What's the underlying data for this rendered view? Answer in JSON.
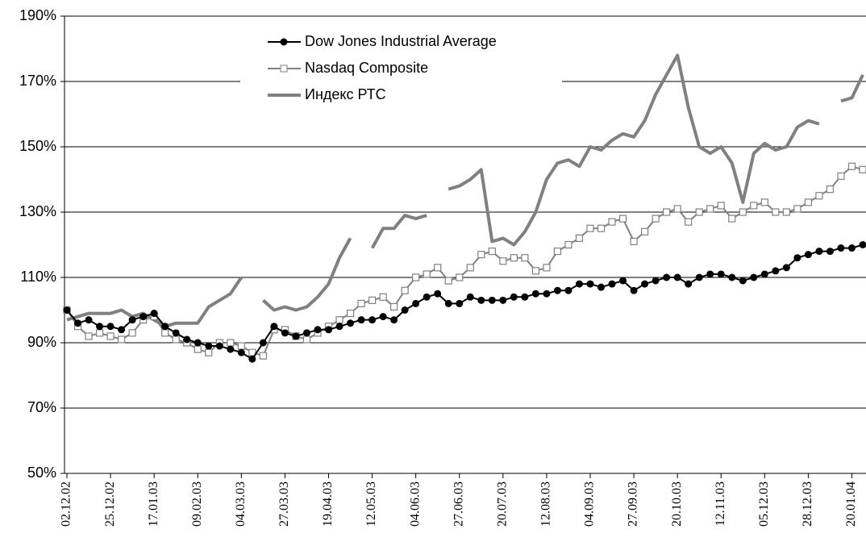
{
  "chart_data": {
    "type": "line",
    "categories": [
      "02.12.02",
      null,
      null,
      null,
      "25.12.02",
      null,
      null,
      null,
      "17.01.03",
      null,
      null,
      null,
      "09.02.03",
      null,
      null,
      null,
      "04.03.03",
      null,
      null,
      null,
      "27.03.03",
      null,
      null,
      null,
      "19.04.03",
      null,
      null,
      null,
      "12.05.03",
      null,
      null,
      null,
      "04.06.03",
      null,
      null,
      null,
      "27.06.03",
      null,
      null,
      null,
      "20.07.03",
      null,
      null,
      null,
      "12.08.03",
      null,
      null,
      null,
      "04.09.03",
      null,
      null,
      null,
      "27.09.03",
      null,
      null,
      null,
      "20.10.03",
      null,
      null,
      null,
      "12.11.03",
      null,
      null,
      null,
      "05.12.03",
      null,
      null,
      null,
      "28.12.03",
      null,
      null,
      null,
      "20.01.04",
      null
    ],
    "series": [
      {
        "name": "Dow Jones Industrial Average",
        "color": "#000000",
        "marker": "circle",
        "values": [
          100,
          96,
          97,
          95,
          95,
          94,
          97,
          98,
          99,
          95,
          93,
          91,
          90,
          89,
          89,
          88,
          87,
          85,
          90,
          95,
          93,
          92,
          93,
          94,
          94,
          95,
          96,
          97,
          97,
          98,
          97,
          100,
          102,
          104,
          105,
          102,
          102,
          104,
          103,
          103,
          103,
          104,
          104,
          105,
          105,
          106,
          106,
          108,
          108,
          107,
          108,
          109,
          106,
          108,
          109,
          110,
          110,
          108,
          110,
          111,
          111,
          110,
          109,
          110,
          111,
          112,
          113,
          116,
          117,
          118,
          118,
          119,
          119,
          120
        ]
      },
      {
        "name": "Nasdaq Composite",
        "color": "#808080",
        "marker": "square",
        "values": [
          100,
          95,
          92,
          93,
          92,
          91,
          93,
          97,
          98,
          93,
          91,
          90,
          88,
          87,
          90,
          90,
          89,
          87,
          86,
          94,
          94,
          92,
          91,
          93,
          95,
          97,
          99,
          102,
          103,
          104,
          101,
          106,
          110,
          111,
          113,
          109,
          110,
          113,
          117,
          118,
          115,
          116,
          116,
          112,
          113,
          118,
          120,
          122,
          125,
          125,
          127,
          128,
          121,
          124,
          128,
          130,
          131,
          127,
          130,
          131,
          132,
          128,
          130,
          132,
          133,
          130,
          130,
          131,
          133,
          135,
          137,
          141,
          144,
          143
        ]
      },
      {
        "name": "Индекс РТС",
        "color": "#808080",
        "marker": "none",
        "values": [
          97,
          98,
          99,
          99,
          99,
          100,
          98,
          99,
          97,
          95,
          96,
          96,
          96,
          101,
          103,
          105,
          110,
          null,
          103,
          100,
          101,
          100,
          101,
          104,
          108,
          116,
          122,
          null,
          119,
          125,
          125,
          129,
          128,
          129,
          null,
          137,
          138,
          140,
          143,
          121,
          122,
          120,
          124,
          130,
          140,
          145,
          146,
          144,
          150,
          149,
          152,
          154,
          153,
          158,
          166,
          172,
          178,
          162,
          150,
          148,
          150,
          145,
          133,
          148,
          151,
          149,
          150,
          156,
          158,
          157,
          null,
          164,
          165,
          172
        ]
      }
    ],
    "ylim": [
      50,
      190
    ],
    "yticks": [
      {
        "value": 50,
        "label": "50%"
      },
      {
        "value": 70,
        "label": "70%"
      },
      {
        "value": 90,
        "label": "90%"
      },
      {
        "value": 110,
        "label": "110%"
      },
      {
        "value": 130,
        "label": "130%"
      },
      {
        "value": 150,
        "label": "150%"
      },
      {
        "value": 170,
        "label": "170%"
      },
      {
        "value": 190,
        "label": "190%"
      }
    ],
    "grid": true,
    "legend": "top-center"
  }
}
